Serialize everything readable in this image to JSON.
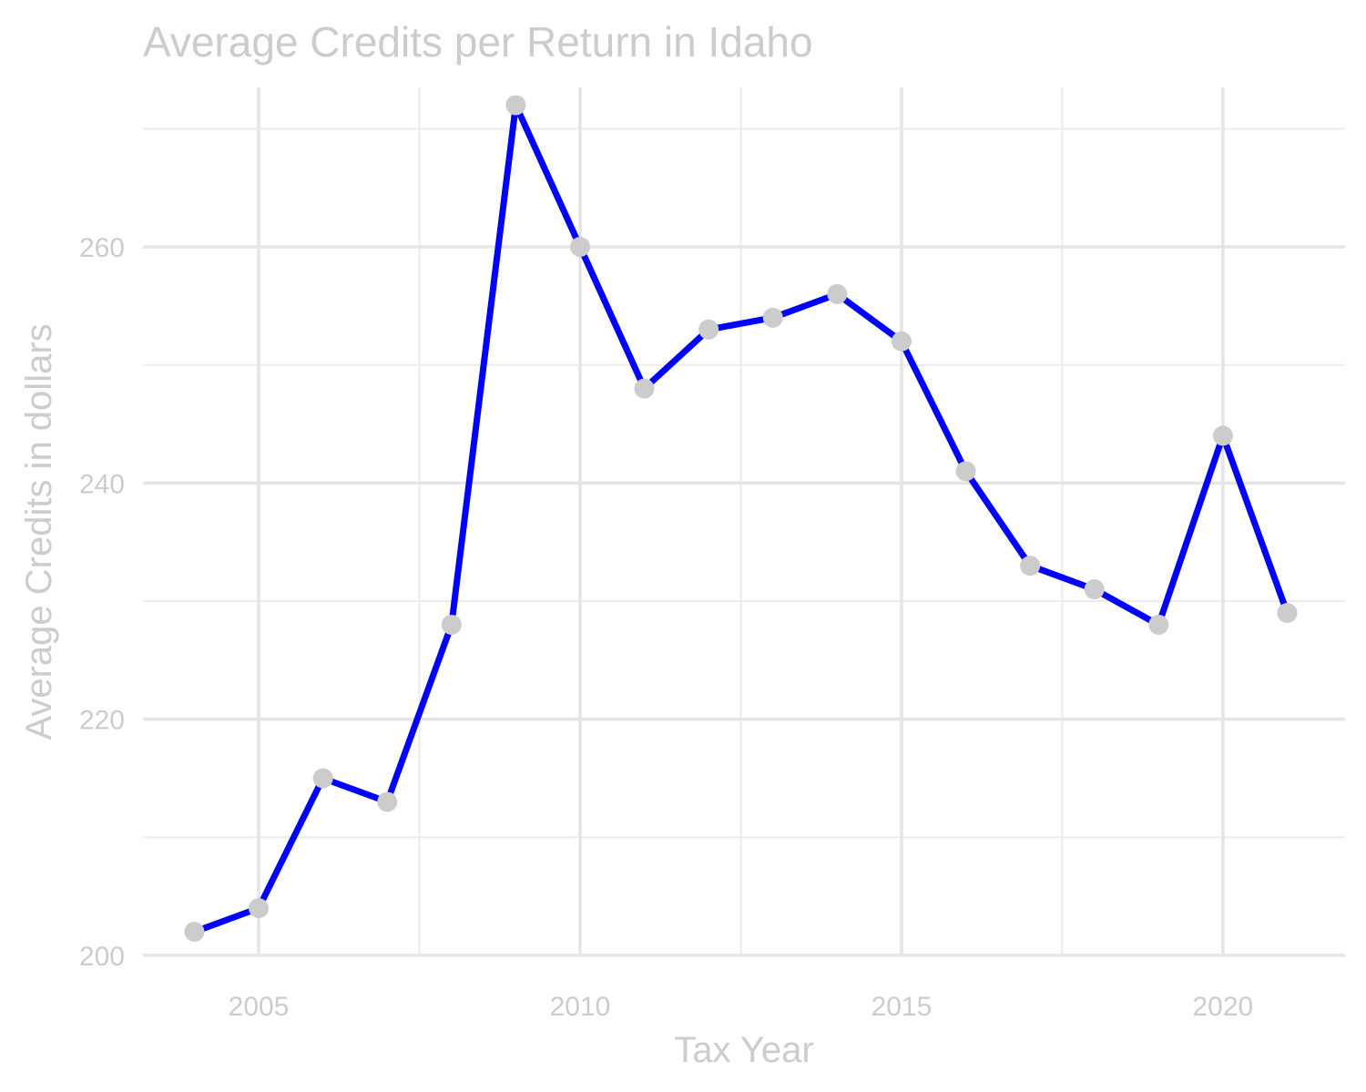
{
  "chart_data": {
    "type": "line",
    "title": "Average Credits per Return in Idaho",
    "xlabel": "Tax Year",
    "ylabel": "Average Credits in dollars",
    "xlim": [
      2003.2,
      2021.9
    ],
    "ylim": [
      200,
      273.5
    ],
    "x_ticks": [
      2005,
      2010,
      2015,
      2020
    ],
    "x_tick_labels": [
      "2005",
      "2010",
      "2015",
      "2020"
    ],
    "x_minor_ticks": [
      2007.5,
      2012.5,
      2017.5
    ],
    "y_ticks": [
      200,
      220,
      240,
      260
    ],
    "y_tick_labels": [
      "200",
      "220",
      "240",
      "260"
    ],
    "y_minor_ticks": [
      210,
      230,
      250,
      270
    ],
    "grid": true,
    "line_color": "#0000ff",
    "point_color": "#cccccc",
    "series": [
      {
        "x": [
          2004,
          2005,
          2006,
          2007,
          2008,
          2009,
          2010,
          2011,
          2012,
          2013,
          2014,
          2015,
          2016,
          2017,
          2018,
          2019,
          2020,
          2021
        ],
        "values": [
          202,
          204,
          215,
          213,
          228,
          272,
          260,
          248,
          253,
          254,
          256,
          252,
          241,
          233,
          231,
          228,
          244,
          229
        ]
      }
    ]
  }
}
